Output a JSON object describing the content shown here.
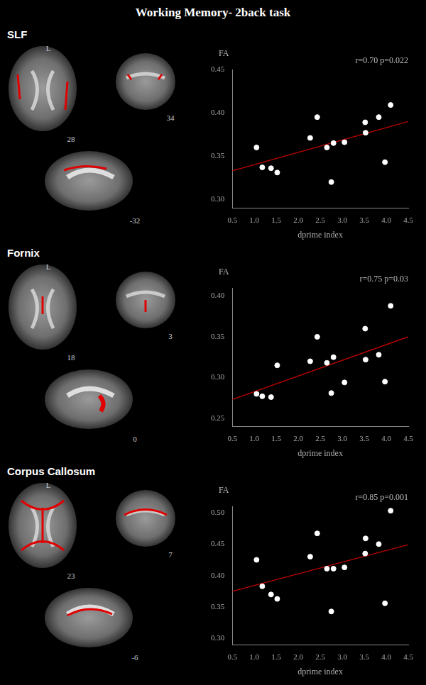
{
  "title": "Working Memory- 2back task",
  "brain_views": [
    {
      "side_label": "L",
      "slice_labels": [
        28,
        34,
        -32
      ]
    },
    {
      "side_label": "L",
      "slice_labels": [
        18,
        3,
        0
      ]
    },
    {
      "side_label": "L",
      "slice_labels": [
        23,
        7,
        -6
      ]
    }
  ],
  "chart_data": [
    {
      "type": "scatter",
      "title": "SLF",
      "x_label": "dprime index",
      "y_label": "FA",
      "annotation": "r=0.70 p=0.022",
      "xlim": [
        0.5,
        4.5
      ],
      "xticks": [
        0.5,
        {
          "value": 1,
          "label": "1.0"
        },
        1.5,
        {
          "value": 2,
          "label": "2.0"
        },
        2.5,
        {
          "value": 3,
          "label": "3.0"
        },
        3.5,
        {
          "value": 4,
          "label": "4.0"
        },
        4.5
      ],
      "ylim": [
        0.29,
        0.45
      ],
      "yticks": [
        {
          "value": 0.3,
          "label": "0.30"
        },
        0.35,
        {
          "value": 0.4,
          "label": "0.40"
        },
        0.45
      ],
      "grid": false,
      "series": [
        {
          "type": "scatter",
          "color": "#ffffff",
          "marker": "circle",
          "x": [
            1.05,
            1.18,
            1.38,
            1.52,
            2.27,
            2.43,
            2.65,
            2.75,
            2.8,
            3.05,
            3.52,
            3.53,
            3.83,
            3.97,
            4.1
          ],
          "values": [
            0.36,
            0.337,
            0.336,
            0.331,
            0.371,
            0.395,
            0.36,
            0.32,
            0.365,
            0.366,
            0.389,
            0.377,
            0.395,
            0.343,
            0.409
          ]
        },
        {
          "type": "line",
          "color": "#c00000",
          "line_style": "solid",
          "x": [
            0.5,
            4.5
          ],
          "values": [
            0.333,
            0.39
          ]
        }
      ]
    },
    {
      "type": "scatter",
      "title": "Fornix",
      "x_label": "dprime index",
      "y_label": "FA",
      "annotation": "r=0.75 p=0.03",
      "xlim": [
        0.5,
        4.5
      ],
      "xticks": [
        0.5,
        {
          "value": 1,
          "label": "1.0"
        },
        1.5,
        {
          "value": 2,
          "label": "2.0"
        },
        2.5,
        {
          "value": 3,
          "label": "3.0"
        },
        3.5,
        {
          "value": 4,
          "label": "4.0"
        },
        4.5
      ],
      "ylim": [
        0.24,
        0.41
      ],
      "yticks": [
        0.25,
        {
          "value": 0.3,
          "label": "0.30"
        },
        0.35,
        {
          "value": 0.4,
          "label": "0.40"
        }
      ],
      "grid": false,
      "series": [
        {
          "type": "scatter",
          "color": "#ffffff",
          "marker": "circle",
          "x": [
            1.05,
            1.18,
            1.38,
            1.52,
            2.27,
            2.43,
            2.65,
            2.75,
            2.8,
            3.05,
            3.52,
            3.53,
            3.83,
            3.97,
            4.1
          ],
          "values": [
            0.28,
            0.277,
            0.276,
            0.315,
            0.32,
            0.35,
            0.318,
            0.281,
            0.325,
            0.294,
            0.36,
            0.322,
            0.328,
            0.295,
            0.388
          ]
        },
        {
          "type": "line",
          "color": "#c00000",
          "line_style": "solid",
          "x": [
            0.5,
            4.5
          ],
          "values": [
            0.273,
            0.35
          ]
        }
      ]
    },
    {
      "type": "scatter",
      "title": "Corpus Callosum",
      "x_label": "dprime index",
      "y_label": "FA",
      "annotation": "r=0.85 p=0.001",
      "xlim": [
        0.5,
        4.5
      ],
      "xticks": [
        0.5,
        {
          "value": 1,
          "label": "1.0"
        },
        1.5,
        {
          "value": 2,
          "label": "2.0"
        },
        2.5,
        {
          "value": 3,
          "label": "3.0"
        },
        3.5,
        {
          "value": 4,
          "label": "4.0"
        },
        4.5
      ],
      "ylim": [
        0.29,
        0.51
      ],
      "yticks": [
        {
          "value": 0.3,
          "label": "0.30"
        },
        0.35,
        {
          "value": 0.4,
          "label": "0.40"
        },
        0.45,
        {
          "value": 0.5,
          "label": "0.50"
        }
      ],
      "grid": false,
      "series": [
        {
          "type": "scatter",
          "color": "#ffffff",
          "marker": "circle",
          "x": [
            1.05,
            1.18,
            1.38,
            1.52,
            2.27,
            2.43,
            2.65,
            2.75,
            2.8,
            3.05,
            3.52,
            3.53,
            3.83,
            3.97,
            4.1
          ],
          "values": [
            0.425,
            0.383,
            0.37,
            0.363,
            0.43,
            0.467,
            0.411,
            0.343,
            0.411,
            0.413,
            0.435,
            0.459,
            0.45,
            0.356,
            0.503
          ]
        },
        {
          "type": "line",
          "color": "#c00000",
          "line_style": "solid",
          "x": [
            0.5,
            4.5
          ],
          "values": [
            0.375,
            0.449
          ]
        }
      ]
    }
  ]
}
